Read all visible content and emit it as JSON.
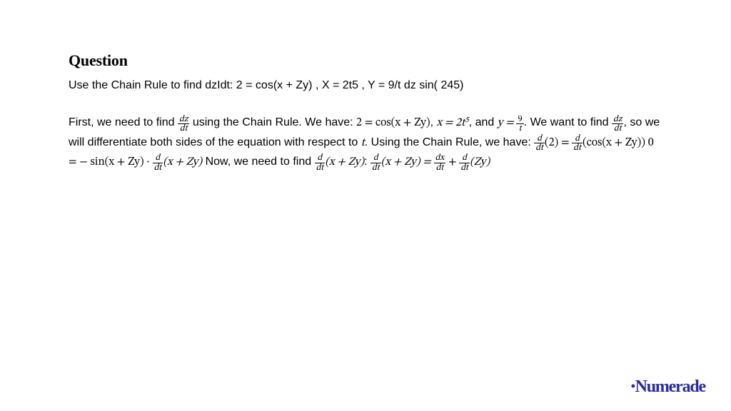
{
  "heading": "Question",
  "prompt": "Use the Chain Rule to find dzIdt: 2 = cos(x + Zy) , X = 2t5 , Y = 9/t dz sin( 245)",
  "solution": {
    "p1a": "First, we need to find ",
    "dzdt_num1": "dz",
    "dzdt_den1": "dt",
    "p1b": " using the Chain Rule. We have: ",
    "eq1": "2 = cos(x + Zy)",
    "p1c": ", ",
    "eq2a": "x = 2t",
    "eq2b_sup": "5",
    "p1d": ", and ",
    "eq3a": "y = ",
    "eq3_num": "9",
    "eq3_den": "t",
    "p1e": ".",
    "p2a": "We want to find ",
    "dzdt_num2": "dz",
    "dzdt_den2": "dt",
    "p2b": ", so we will differentiate both sides of the equation with respect to ",
    "tvar": "t",
    "p2c": ". Using the Chain Rule, we have: ",
    "ddt1_num": "d",
    "ddt1_den": "dt",
    "arg1": "(2) = ",
    "ddt2_num": "d",
    "ddt2_den": "dt",
    "arg2": "(cos(x + Zy)) 0 = − sin(x + Zy) · ",
    "ddt3_num": "d",
    "ddt3_den": "dt",
    "arg3": "(x + Zy)",
    "p2d": " Now, we need to find ",
    "ddt4_num": "d",
    "ddt4_den": "dt",
    "arg4": "(x + Zy)",
    "p2e": ": ",
    "ddt5_num": "d",
    "ddt5_den": "dt",
    "arg5": "(x + Zy) = ",
    "dxdt_num": "dx",
    "dxdt_den": "dt",
    "plus": " + ",
    "ddt6_num": "d",
    "ddt6_den": "dt",
    "arg6": "(Zy)"
  },
  "brand": "Numerade",
  "colors": {
    "text": "#000000",
    "brand": "#2a2aa0",
    "background": "#ffffff"
  },
  "fontsizes": {
    "heading": 22,
    "body": 16,
    "brand": 24
  }
}
